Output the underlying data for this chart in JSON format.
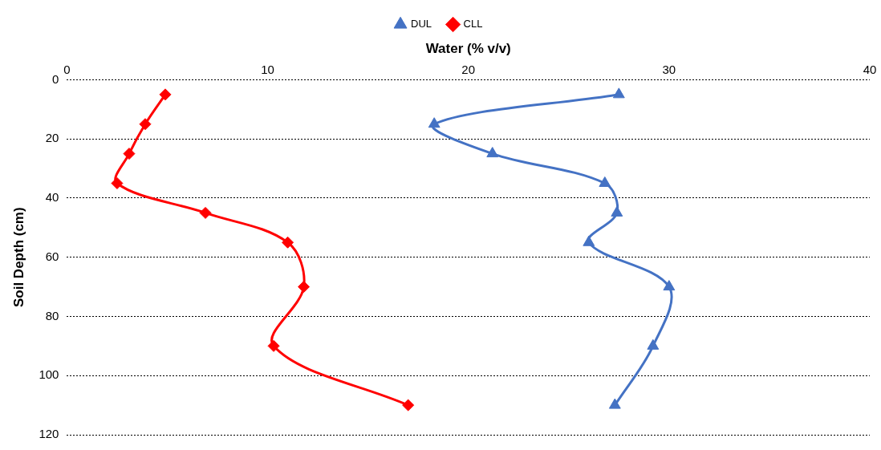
{
  "chart_data": {
    "type": "line",
    "xlabel": "Water (% v/v)",
    "ylabel": "Soil Depth (cm)",
    "xlim": [
      0,
      40
    ],
    "xticks": [
      0,
      10,
      20,
      30,
      40
    ],
    "ylim": [
      120,
      0
    ],
    "yticks": [
      0,
      20,
      40,
      60,
      80,
      100,
      120
    ],
    "grid": "y",
    "legend": "top",
    "series": [
      {
        "name": "DUL",
        "color": "#4472c4",
        "marker": "triangle",
        "x": [
          27.5,
          18.3,
          21.2,
          26.8,
          27.4,
          26.0,
          30.0,
          29.2,
          27.3
        ],
        "values": [
          5,
          15,
          25,
          35,
          45,
          55,
          70,
          90,
          110
        ]
      },
      {
        "name": "CLL",
        "color": "#ff0000",
        "marker": "diamond",
        "x": [
          4.9,
          3.9,
          3.1,
          2.5,
          6.9,
          11.0,
          11.8,
          10.3,
          17.0
        ],
        "values": [
          5,
          15,
          25,
          35,
          45,
          55,
          70,
          90,
          110
        ]
      }
    ]
  }
}
